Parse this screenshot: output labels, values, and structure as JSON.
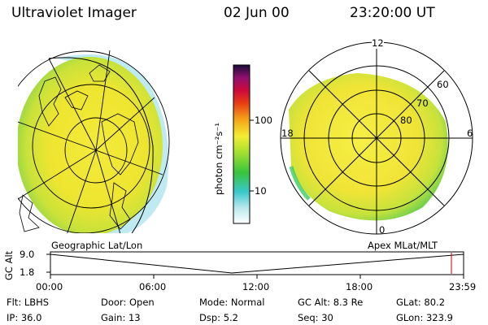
{
  "header": {
    "instrument": "Ultraviolet Imager",
    "date": "02 Jun 00",
    "time": "23:20:00 UT"
  },
  "colorbar": {
    "unit_label": "photon cm⁻²s⁻¹",
    "ticks": [
      "100",
      "10"
    ]
  },
  "left_map": {
    "label": "Geographic Lat/Lon"
  },
  "right_map": {
    "label": "Apex MLat/MLT",
    "mlt_labels": {
      "top": "12",
      "left": "18",
      "right": "6",
      "bottom": "0"
    },
    "lat_labels": [
      "60",
      "70",
      "80"
    ]
  },
  "timeline": {
    "y_label": "GC Alt",
    "y_ticks": [
      "9.0",
      "1.8"
    ],
    "x_ticks": [
      "00:00",
      "06:00",
      "12:00",
      "18:00",
      "23:59"
    ],
    "marker_color": "#cc0000"
  },
  "info": {
    "row1": [
      {
        "key": "Flt:",
        "value": "LBHS"
      },
      {
        "key": "Door:",
        "value": "Open"
      },
      {
        "key": "Mode:",
        "value": "Normal"
      },
      {
        "key": "GC Alt:",
        "value": "8.3 Re"
      },
      {
        "key": "GLat:",
        "value": "80.2"
      }
    ],
    "row2": [
      {
        "key": "IP:",
        "value": "36.0"
      },
      {
        "key": "Gain:",
        "value": "13"
      },
      {
        "key": "Dsp:",
        "value": "5.2"
      },
      {
        "key": "Seq:",
        "value": "30"
      },
      {
        "key": "GLon:",
        "value": "323.9"
      }
    ]
  }
}
